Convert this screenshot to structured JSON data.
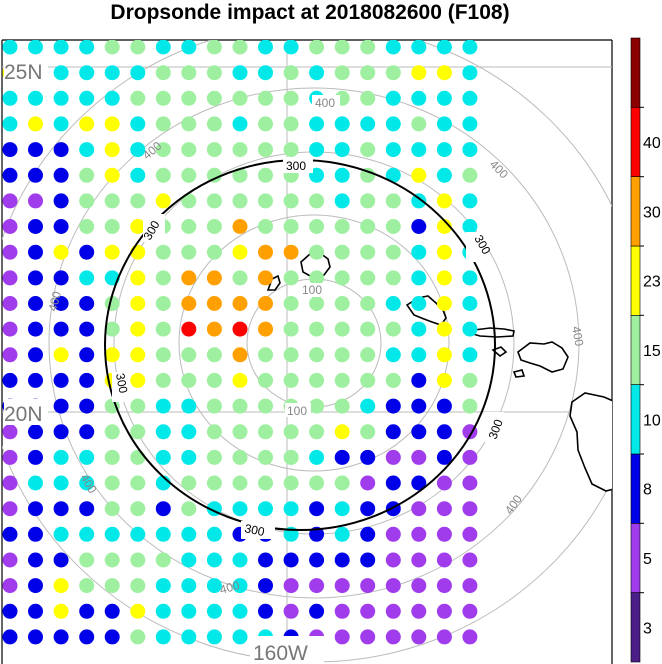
{
  "title": "Dropsonde impact at 2018082600 (F108)",
  "chart_data": {
    "type": "scatter",
    "title": "Dropsonde impact at 2018082600 (F108)",
    "lat_labels": [
      "25N",
      "20N"
    ],
    "lon_labels": [
      "160W"
    ],
    "ring_labels": [
      "100",
      "200",
      "300",
      "400"
    ],
    "contour_label": "300",
    "colorbar": {
      "tick_labels": [
        "3",
        "5",
        "8",
        "10",
        "15",
        "23",
        "30",
        "40"
      ],
      "colors": [
        "#4b1e8a",
        "#a03cec",
        "#0000e8",
        "#00e8e8",
        "#9ef0a0",
        "#ffff00",
        "#ffa000",
        "#ff0000",
        "#8b0000"
      ]
    },
    "grid_rows": [
      "3333443344334443333",
      "5333334443343444553",
      "3333344444443443333",
      "3535534443443333433",
      "2223534444443343333",
      "2224534444443343534",
      "1124445444444344353",
      "1224454446444444253",
      "1252554445664444353",
      "1223354664644444353",
      "1222454666644443353",
      "1222454767644444353",
      "1252554446444443353",
      "2222554445444444254",
      "2222443344444432224",
      "1222443344444542221",
      "1233443344443221121",
      "1333443444444412211",
      "1222442433332322111",
      "2233333332232321111",
      "1224444333222221111",
      "1254443333211111111",
      "2252253333212111111",
      "2222243333321111111"
    ]
  }
}
